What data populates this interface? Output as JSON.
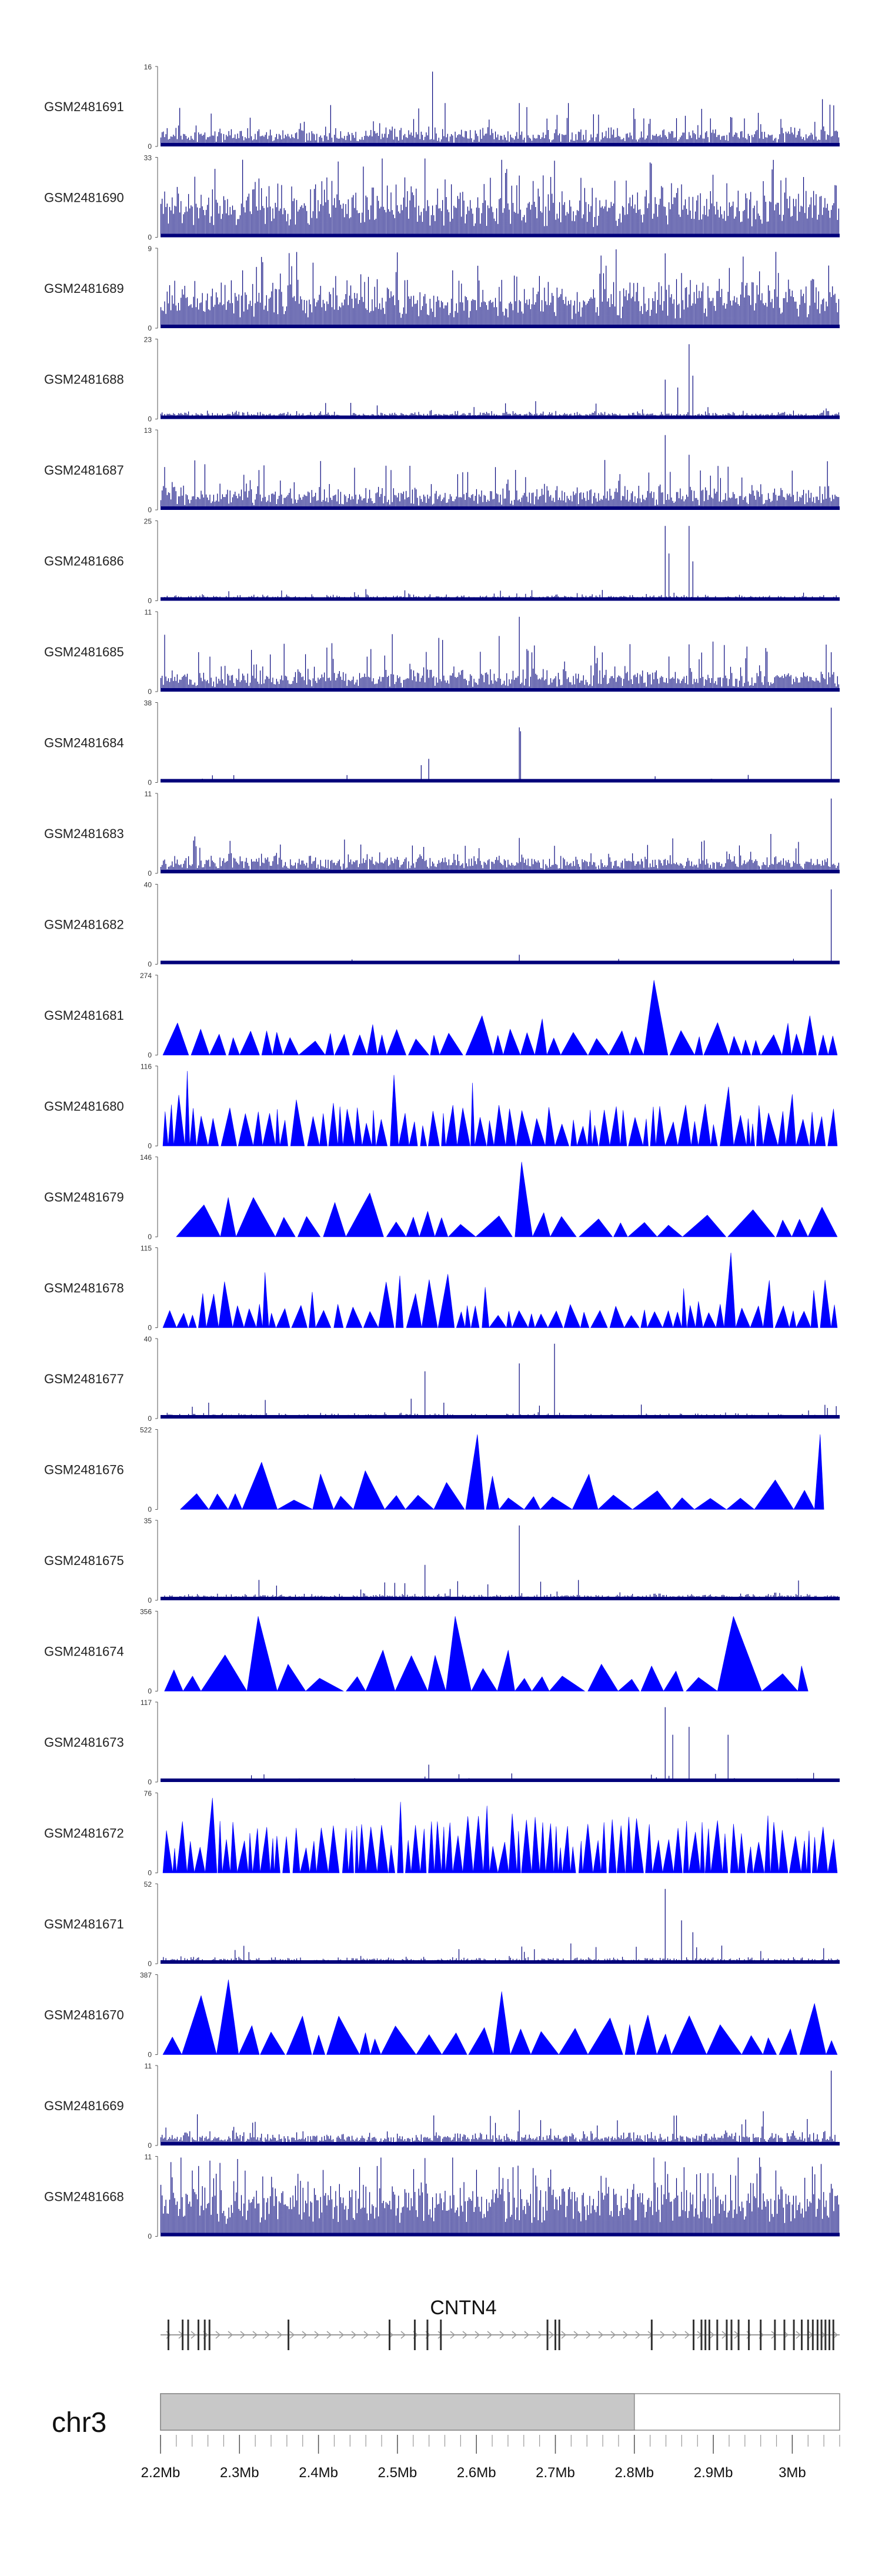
{
  "chart_data": {
    "type": "area",
    "chromosome": "chr3",
    "gene": {
      "name": "CNTN4",
      "strand": "+",
      "exons_mb": [
        2.21,
        2.228,
        2.235,
        2.248,
        2.256,
        2.262,
        2.362,
        2.49,
        2.522,
        2.538,
        2.555,
        2.69,
        2.7,
        2.705,
        2.822,
        2.875,
        2.885,
        2.89,
        2.895,
        2.905,
        2.917,
        2.923,
        2.932,
        2.945,
        2.96,
        2.978,
        2.99,
        3.002,
        3.012,
        3.02,
        3.026,
        3.032,
        3.037,
        3.042,
        3.047,
        3.052
      ]
    },
    "ideogram": {
      "highlight_mb": [
        2.2,
        2.8
      ]
    },
    "x_axis": {
      "domain_mb": [
        2.2,
        3.06
      ],
      "ticks": [
        {
          "mb": 2.2,
          "label": "2.2Mb"
        },
        {
          "mb": 2.3,
          "label": "2.3Mb"
        },
        {
          "mb": 2.4,
          "label": "2.4Mb"
        },
        {
          "mb": 2.5,
          "label": "2.5Mb"
        },
        {
          "mb": 2.6,
          "label": "2.6Mb"
        },
        {
          "mb": 2.7,
          "label": "2.7Mb"
        },
        {
          "mb": 2.8,
          "label": "2.8Mb"
        },
        {
          "mb": 2.9,
          "label": "2.9Mb"
        },
        {
          "mb": 3.0,
          "label": "3Mb"
        }
      ]
    },
    "series": [
      {
        "name": "GSM2481691",
        "ymax": 16,
        "style": "spiky",
        "base": 0.12,
        "noise": 0.16,
        "spikeProb": 0.05,
        "spikeAmp": 0.35,
        "bins": 540,
        "peaks": [
          [
            2.545,
            0.95
          ],
          [
            2.56,
            0.55
          ],
          [
            2.655,
            0.55
          ],
          [
            2.82,
            0.35
          ],
          [
            3.04,
            0.6
          ]
        ]
      },
      {
        "name": "GSM2481690",
        "ymax": 33,
        "style": "spiky",
        "base": 0.35,
        "noise": 0.4,
        "spikeProb": 0.08,
        "spikeAmp": 0.55,
        "bins": 540,
        "peaks": [
          [
            2.82,
            0.95
          ],
          [
            2.835,
            0.65
          ],
          [
            2.875,
            0.5
          ]
        ]
      },
      {
        "name": "GSM2481689",
        "ymax": 9,
        "style": "spiky",
        "base": 0.3,
        "noise": 0.4,
        "spikeProb": 0.1,
        "spikeAmp": 0.6,
        "bins": 540,
        "peaks": [
          [
            2.84,
            0.95
          ],
          [
            2.86,
            0.7
          ],
          [
            2.88,
            0.55
          ]
        ]
      },
      {
        "name": "GSM2481688",
        "ymax": 23,
        "style": "spiky",
        "base": 0.05,
        "noise": 0.06,
        "spikeProb": 0.03,
        "spikeAmp": 0.15,
        "bins": 540,
        "peaks": [
          [
            2.84,
            0.5
          ],
          [
            2.855,
            0.4
          ],
          [
            2.87,
            0.95
          ],
          [
            2.875,
            0.55
          ]
        ]
      },
      {
        "name": "GSM2481687",
        "ymax": 13,
        "style": "spiky",
        "base": 0.15,
        "noise": 0.22,
        "spikeProb": 0.08,
        "spikeAmp": 0.45,
        "bins": 540,
        "peaks": [
          [
            2.84,
            0.95
          ],
          [
            2.87,
            0.7
          ],
          [
            2.885,
            0.5
          ]
        ]
      },
      {
        "name": "GSM2481686",
        "ymax": 25,
        "style": "spiky",
        "base": 0.04,
        "noise": 0.05,
        "spikeProb": 0.02,
        "spikeAmp": 0.12,
        "bins": 540,
        "peaks": [
          [
            2.84,
            0.95
          ],
          [
            2.845,
            0.6
          ],
          [
            2.87,
            0.95
          ],
          [
            2.875,
            0.5
          ]
        ]
      },
      {
        "name": "GSM2481685",
        "ymax": 11,
        "style": "spiky",
        "base": 0.15,
        "noise": 0.2,
        "spikeProb": 0.08,
        "spikeAmp": 0.5,
        "bins": 540,
        "peaks": [
          [
            2.655,
            0.95
          ],
          [
            2.87,
            0.6
          ],
          [
            3.05,
            0.5
          ]
        ]
      },
      {
        "name": "GSM2481684",
        "ymax": 38,
        "style": "spiky",
        "base": 0.02,
        "noise": 0.03,
        "spikeProb": 0.01,
        "spikeAmp": 0.08,
        "bins": 540,
        "peaks": [
          [
            2.53,
            0.22
          ],
          [
            2.54,
            0.3
          ],
          [
            2.655,
            0.7
          ],
          [
            2.656,
            0.65
          ],
          [
            3.05,
            0.95
          ]
        ]
      },
      {
        "name": "GSM2481683",
        "ymax": 11,
        "style": "spiky",
        "base": 0.12,
        "noise": 0.16,
        "spikeProb": 0.05,
        "spikeAmp": 0.35,
        "bins": 540,
        "peaks": [
          [
            2.655,
            0.45
          ],
          [
            3.05,
            0.95
          ]
        ]
      },
      {
        "name": "GSM2481682",
        "ymax": 40,
        "style": "spiky",
        "base": 0.02,
        "noise": 0.02,
        "spikeProb": 0.01,
        "spikeAmp": 0.05,
        "bins": 540,
        "peaks": [
          [
            2.655,
            0.12
          ],
          [
            3.05,
            0.95
          ]
        ]
      },
      {
        "name": "GSM2481681",
        "ymax": 274,
        "style": "tri",
        "base": 0.22,
        "noise": 0.06,
        "minW": 0.01,
        "maxW": 0.035,
        "extraProb": 0.22,
        "extraAmp": 0.55,
        "peaks": [
          [
            2.84,
            0.95
          ],
          [
            2.615,
            0.5
          ],
          [
            3.02,
            0.5
          ]
        ]
      },
      {
        "name": "GSM2481680",
        "ymax": 116,
        "style": "tri",
        "base": 0.36,
        "noise": 0.1,
        "minW": 0.005,
        "maxW": 0.02,
        "extraProb": 0.18,
        "extraAmp": 0.8,
        "peaks": [
          [
            2.235,
            0.95
          ],
          [
            2.495,
            0.9
          ],
          [
            2.6,
            0.8
          ],
          [
            2.92,
            0.75
          ]
        ]
      },
      {
        "name": "GSM2481679",
        "ymax": 146,
        "style": "tri",
        "base": 0.2,
        "noise": 0.08,
        "minW": 0.012,
        "maxW": 0.06,
        "extraProb": 0.15,
        "extraAmp": 0.6,
        "startMb": 2.22,
        "peaks": [
          [
            2.655,
            0.95
          ],
          [
            2.28,
            0.5
          ],
          [
            2.33,
            0.5
          ]
        ]
      },
      {
        "name": "GSM2481678",
        "ymax": 115,
        "style": "tri",
        "base": 0.22,
        "noise": 0.06,
        "minW": 0.006,
        "maxW": 0.022,
        "extraProb": 0.22,
        "extraAmp": 0.7,
        "peaks": [
          [
            2.335,
            0.7
          ],
          [
            2.92,
            0.95
          ],
          [
            2.97,
            0.6
          ]
        ]
      },
      {
        "name": "GSM2481677",
        "ymax": 40,
        "style": "spiky",
        "base": 0.03,
        "noise": 0.05,
        "spikeProb": 0.03,
        "spikeAmp": 0.2,
        "bins": 540,
        "peaks": [
          [
            2.535,
            0.6
          ],
          [
            2.655,
            0.7
          ],
          [
            2.7,
            0.95
          ]
        ]
      },
      {
        "name": "GSM2481676",
        "ymax": 522,
        "style": "tri",
        "base": 0.18,
        "noise": 0.06,
        "minW": 0.015,
        "maxW": 0.05,
        "extraProb": 0.3,
        "extraAmp": 0.55,
        "startMb": 2.225,
        "endMb": 3.04,
        "peaks": [
          [
            2.6,
            0.95
          ],
          [
            3.03,
            0.95
          ],
          [
            2.315,
            0.6
          ]
        ]
      },
      {
        "name": "GSM2481675",
        "ymax": 35,
        "style": "spiky",
        "base": 0.04,
        "noise": 0.06,
        "spikeProb": 0.03,
        "spikeAmp": 0.2,
        "bins": 540,
        "peaks": [
          [
            2.535,
            0.45
          ],
          [
            2.655,
            0.95
          ]
        ]
      },
      {
        "name": "GSM2481674",
        "ymax": 356,
        "style": "tri",
        "base": 0.18,
        "noise": 0.06,
        "minW": 0.015,
        "maxW": 0.06,
        "extraProb": 0.25,
        "extraAmp": 0.55,
        "startMb": 2.205,
        "endMb": 3.02,
        "peaks": [
          [
            2.31,
            0.95
          ],
          [
            2.58,
            0.95
          ],
          [
            2.945,
            0.95
          ],
          [
            2.92,
            0.8
          ]
        ]
      },
      {
        "name": "GSM2481673",
        "ymax": 117,
        "style": "spiky",
        "base": 0.02,
        "noise": 0.03,
        "spikeProb": 0.02,
        "spikeAmp": 0.1,
        "bins": 540,
        "peaks": [
          [
            2.54,
            0.22
          ],
          [
            2.84,
            0.95
          ],
          [
            2.85,
            0.6
          ],
          [
            2.87,
            0.7
          ],
          [
            2.92,
            0.6
          ]
        ]
      },
      {
        "name": "GSM2481672",
        "ymax": 76,
        "style": "tri",
        "base": 0.45,
        "noise": 0.15,
        "minW": 0.004,
        "maxW": 0.015,
        "extraProb": 0.25,
        "extraAmp": 0.75,
        "peaks": [
          [
            2.265,
            0.95
          ],
          [
            2.5,
            0.9
          ],
          [
            2.61,
            0.85
          ]
        ]
      },
      {
        "name": "GSM2481671",
        "ymax": 52,
        "style": "spiky",
        "base": 0.04,
        "noise": 0.06,
        "spikeProb": 0.03,
        "spikeAmp": 0.2,
        "bins": 540,
        "peaks": [
          [
            2.84,
            0.95
          ],
          [
            2.86,
            0.55
          ],
          [
            2.875,
            0.4
          ]
        ]
      },
      {
        "name": "GSM2481670",
        "ymax": 387,
        "style": "tri",
        "base": 0.26,
        "noise": 0.08,
        "minW": 0.012,
        "maxW": 0.045,
        "extraProb": 0.25,
        "extraAmp": 0.55,
        "peaks": [
          [
            2.285,
            0.95
          ],
          [
            2.26,
            0.75
          ],
          [
            2.625,
            0.8
          ],
          [
            3.03,
            0.65
          ]
        ]
      },
      {
        "name": "GSM2481669",
        "ymax": 11,
        "style": "spiky",
        "base": 0.08,
        "noise": 0.12,
        "spikeProb": 0.05,
        "spikeAmp": 0.3,
        "bins": 540,
        "peaks": [
          [
            2.655,
            0.45
          ],
          [
            3.05,
            0.95
          ]
        ]
      },
      {
        "name": "GSM2481668",
        "ymax": 11,
        "style": "spiky",
        "base": 0.45,
        "noise": 0.18,
        "spikeProb": 0.15,
        "spikeAmp": 0.5,
        "bins": 540,
        "peaks": [
          [
            2.84,
            0.95
          ],
          [
            2.9,
            0.8
          ]
        ]
      }
    ]
  },
  "colors": {
    "signal": "#0000ff",
    "signal_dark": "#00007a",
    "ideogram_fill": "#c8c8c8",
    "ideogram_border": "#888888",
    "gene_line": "#9a9a9a",
    "exon": "#333333"
  }
}
